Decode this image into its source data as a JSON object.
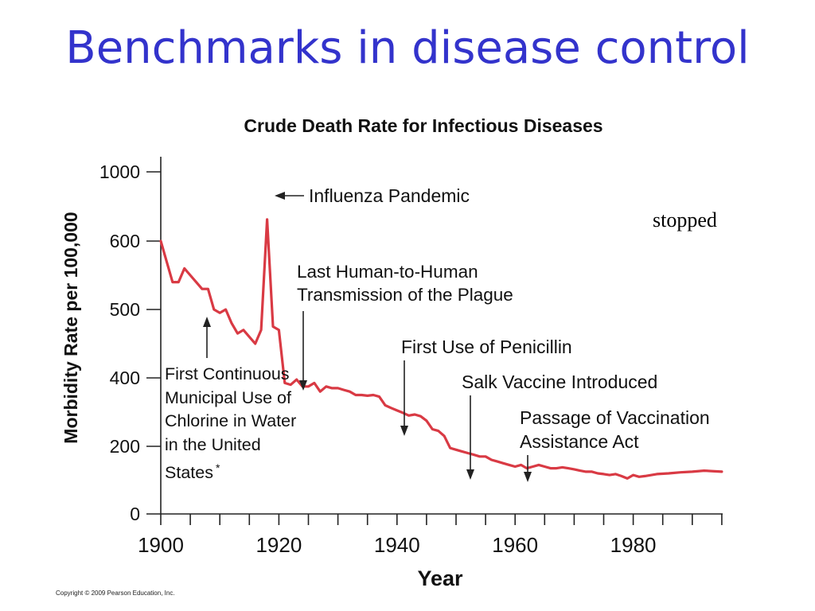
{
  "slide": {
    "title": "Benchmarks in disease control",
    "side_note": "stopped",
    "copyright": "Copyright © 2009 Pearson Education, Inc."
  },
  "chart_data": {
    "type": "line",
    "title": "Crude Death Rate for Infectious Diseases",
    "xlabel": "Year",
    "ylabel": "Morbidity Rate per 100,000",
    "x_ticks": [
      1900,
      1920,
      1940,
      1960,
      1980
    ],
    "y_ticks": [
      0,
      200,
      400,
      500,
      600,
      1000
    ],
    "y_scale": "broken (non-linear)",
    "xlim": [
      1900,
      1995
    ],
    "ylim": [
      0,
      1000
    ],
    "grid": false,
    "line_color": "#d93a44",
    "series": [
      {
        "x": [
          1900,
          1901,
          1902,
          1903,
          1904,
          1905,
          1906,
          1907,
          1908,
          1909,
          1910,
          1911,
          1912,
          1913,
          1914,
          1915,
          1916,
          1917,
          1918,
          1919,
          1920,
          1921,
          1922,
          1923,
          1924,
          1925,
          1926,
          1927,
          1928,
          1929,
          1930,
          1931,
          1932,
          1933,
          1934,
          1935,
          1936,
          1937,
          1938,
          1939,
          1940,
          1941,
          1942,
          1943,
          1944,
          1945,
          1946,
          1947,
          1948,
          1949,
          1950,
          1951,
          1952,
          1953,
          1954,
          1955,
          1956,
          1957,
          1958,
          1959,
          1960,
          1961,
          1962,
          1963,
          1964,
          1965,
          1966,
          1967,
          1968,
          1969,
          1970,
          1971,
          1972,
          1973,
          1974,
          1975,
          1976,
          1977,
          1978,
          1979,
          1980,
          1981,
          1982,
          1984,
          1986,
          1988,
          1990,
          1992,
          1995
        ],
        "y": [
          600,
          570,
          540,
          540,
          560,
          550,
          540,
          530,
          530,
          500,
          495,
          500,
          480,
          465,
          470,
          460,
          450,
          470,
          725,
          475,
          470,
          385,
          380,
          395,
          375,
          375,
          385,
          360,
          375,
          370,
          370,
          365,
          360,
          350,
          350,
          348,
          350,
          345,
          320,
          312,
          305,
          298,
          290,
          293,
          288,
          275,
          250,
          245,
          230,
          195,
          190,
          185,
          180,
          175,
          170,
          170,
          160,
          155,
          150,
          145,
          140,
          145,
          135,
          140,
          145,
          140,
          135,
          135,
          138,
          135,
          132,
          128,
          125,
          125,
          120,
          118,
          115,
          118,
          112,
          105,
          115,
          110,
          112,
          118,
          120,
          123,
          125,
          128,
          125
        ]
      }
    ],
    "annotations": [
      {
        "label": "Influenza Pandemic",
        "x": 1918
      },
      {
        "label": "First Continuous Municipal Use of Chlorine in Water in the United States",
        "x": 1908,
        "asterisk": "*"
      },
      {
        "label": "Last Human-to-Human Transmission of the Plague",
        "x": 1925
      },
      {
        "label": "First Use of Penicillin",
        "x": 1941
      },
      {
        "label": "Salk Vaccine Introduced",
        "x": 1953
      },
      {
        "label": "Passage of Vaccination Assistance Act",
        "x": 1963
      }
    ]
  }
}
